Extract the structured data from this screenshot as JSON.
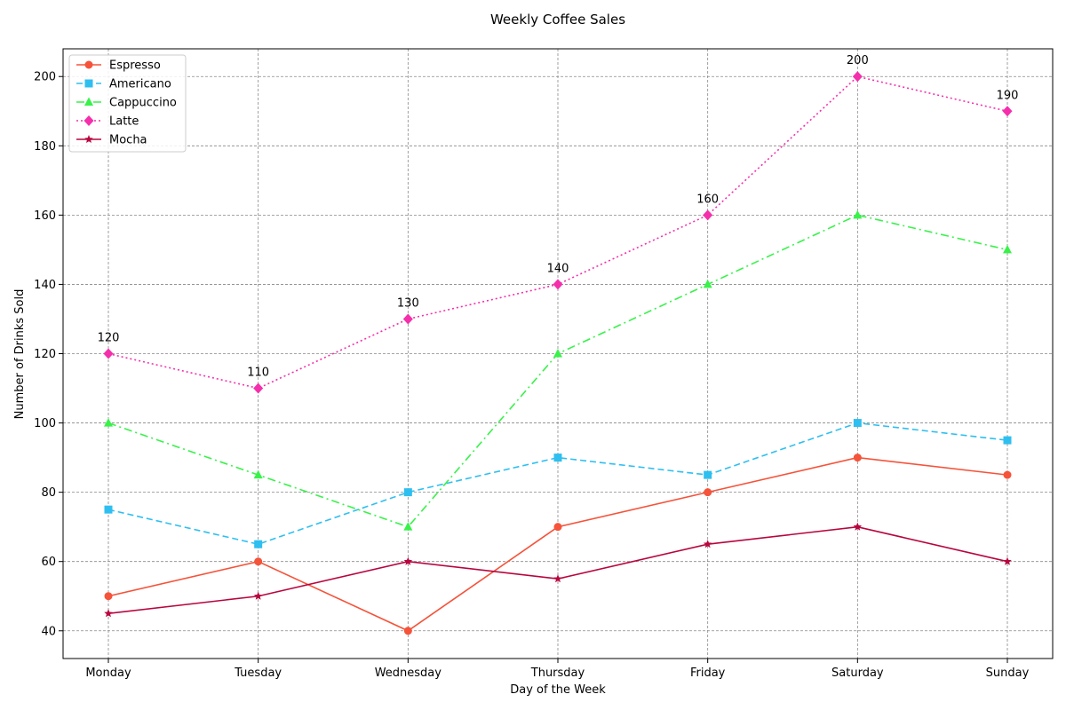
{
  "chart_data": {
    "type": "line",
    "title": "Weekly Coffee Sales",
    "xlabel": "Day of the Week",
    "ylabel": "Number of Drinks Sold",
    "categories": [
      "Monday",
      "Tuesday",
      "Wednesday",
      "Thursday",
      "Friday",
      "Saturday",
      "Sunday"
    ],
    "ylim": [
      32,
      208
    ],
    "yticks": [
      40,
      60,
      80,
      100,
      120,
      140,
      160,
      180,
      200
    ],
    "grid": true,
    "legend_position": "top-left",
    "series": [
      {
        "name": "Espresso",
        "values": [
          50,
          60,
          40,
          70,
          80,
          90,
          85
        ],
        "color": "#f5533a",
        "dash": "solid",
        "marker": "circle"
      },
      {
        "name": "Americano",
        "values": [
          75,
          65,
          80,
          90,
          85,
          100,
          95
        ],
        "color": "#2ebff0",
        "dash": "dashed",
        "marker": "square"
      },
      {
        "name": "Cappuccino",
        "values": [
          100,
          85,
          70,
          120,
          140,
          160,
          150
        ],
        "color": "#38f24a",
        "dash": "dashdot",
        "marker": "triangle"
      },
      {
        "name": "Latte",
        "values": [
          120,
          110,
          130,
          140,
          160,
          200,
          190
        ],
        "color": "#f52fab",
        "dash": "dotted",
        "marker": "diamond"
      },
      {
        "name": "Mocha",
        "values": [
          45,
          50,
          60,
          55,
          65,
          70,
          60
        ],
        "color": "#b8063e",
        "dash": "solid",
        "marker": "star"
      }
    ],
    "annotations": {
      "series": "Latte",
      "labels": [
        "120",
        "110",
        "130",
        "140",
        "160",
        "200",
        "190"
      ]
    }
  }
}
